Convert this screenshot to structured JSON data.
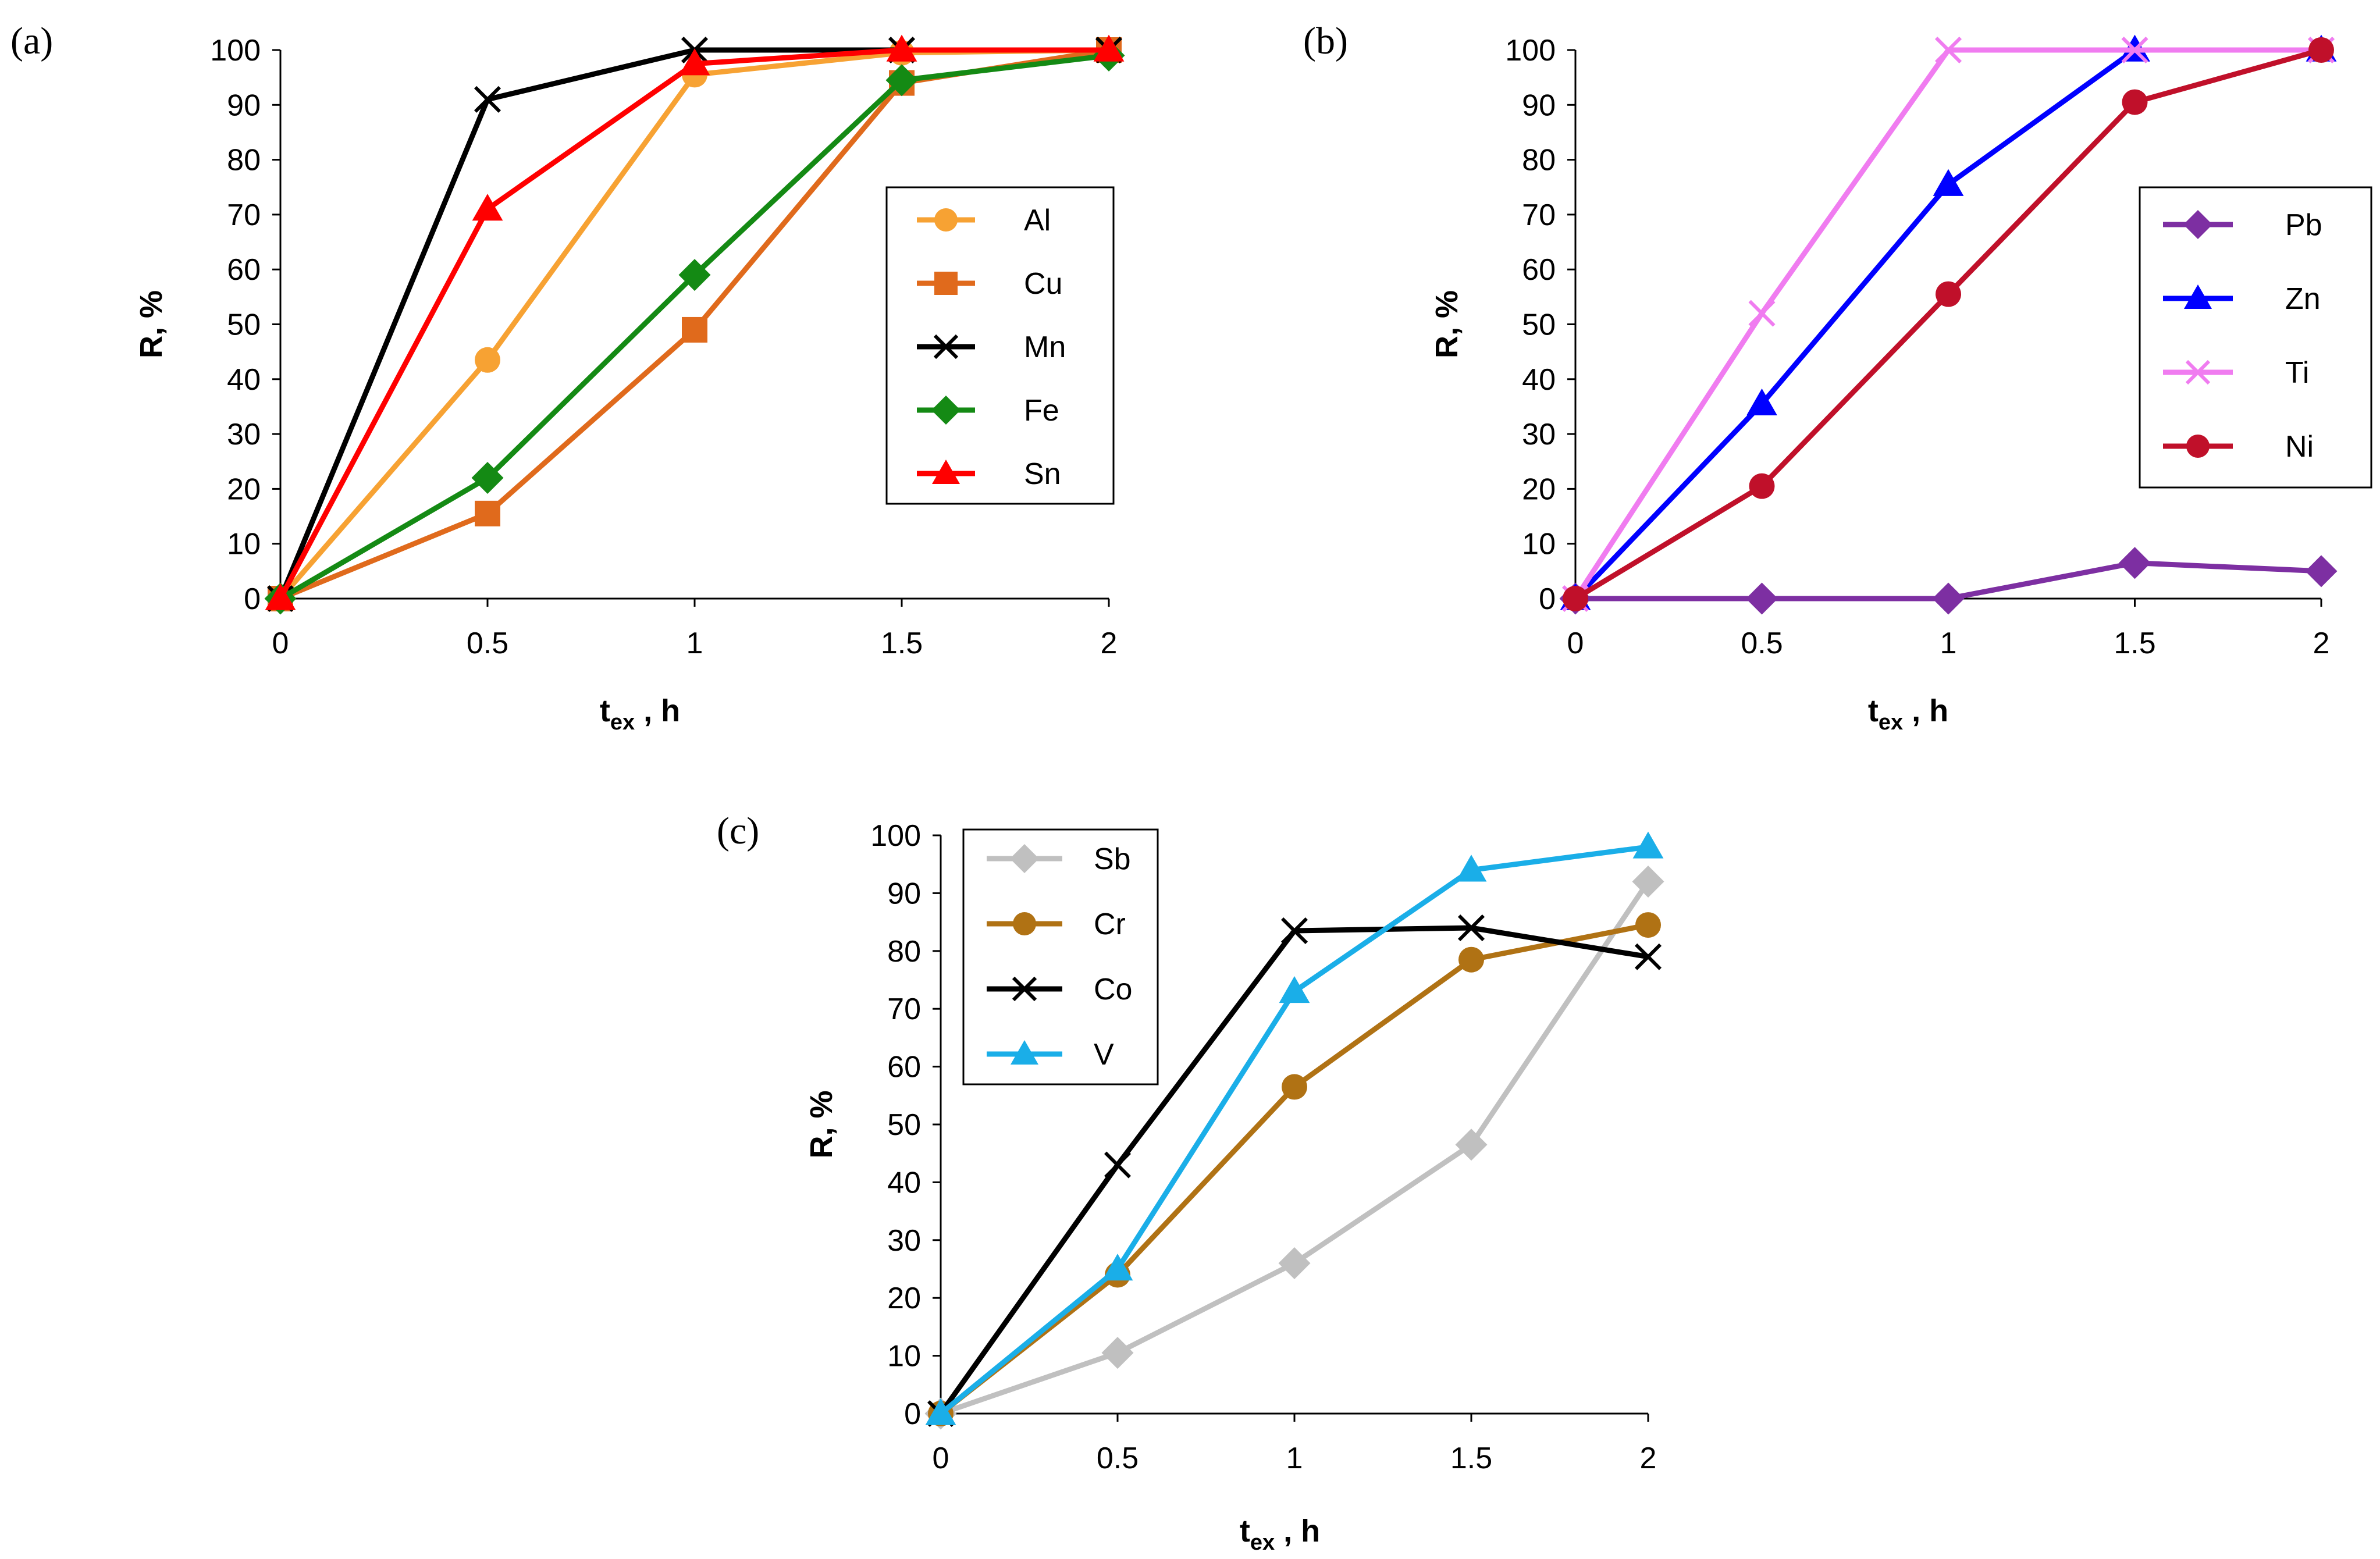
{
  "chart_data": [
    {
      "panel": "(a)",
      "type": "line",
      "x": [
        0,
        0.5,
        1,
        1.5,
        2
      ],
      "xticks": [
        "0",
        "0.5",
        "1",
        "1.5",
        "2"
      ],
      "yticks": [
        "0",
        "10",
        "20",
        "30",
        "40",
        "50",
        "60",
        "70",
        "80",
        "90",
        "100"
      ],
      "ylim": [
        0,
        100
      ],
      "xlabel_main": "t",
      "xlabel_sub": "ex",
      "xlabel_unit": " , h",
      "ylabel": "R, %",
      "legend_position": "right",
      "series": [
        {
          "name": "Al",
          "color": "#f7a233",
          "marker": "circle",
          "values": [
            0,
            43.5,
            95.5,
            99.5,
            100
          ]
        },
        {
          "name": "Cu",
          "color": "#e06a1c",
          "marker": "square",
          "values": [
            0,
            15.5,
            49,
            94,
            100
          ]
        },
        {
          "name": "Mn",
          "color": "#000000",
          "marker": "x",
          "values": [
            0,
            91,
            100,
            100,
            100
          ]
        },
        {
          "name": "Fe",
          "color": "#148a14",
          "marker": "diamond",
          "values": [
            0,
            22,
            59,
            94.5,
            99
          ]
        },
        {
          "name": "Sn",
          "color": "#ff0000",
          "marker": "triangle",
          "values": [
            0,
            71,
            97.5,
            100,
            100
          ]
        }
      ]
    },
    {
      "panel": "(b)",
      "type": "line",
      "x": [
        0,
        0.5,
        1,
        1.5,
        2
      ],
      "xticks": [
        "0",
        "0.5",
        "1",
        "1.5",
        "2"
      ],
      "yticks": [
        "0",
        "10",
        "20",
        "30",
        "40",
        "50",
        "60",
        "70",
        "80",
        "90",
        "100"
      ],
      "ylim": [
        0,
        100
      ],
      "xlabel_main": "t",
      "xlabel_sub": "ex",
      "xlabel_unit": " , h",
      "ylabel": "R, %",
      "legend_position": "right",
      "series": [
        {
          "name": "Pb",
          "color": "#7d2fa2",
          "marker": "diamond",
          "values": [
            0,
            0,
            0,
            6.5,
            5
          ]
        },
        {
          "name": "Zn",
          "color": "#0000ff",
          "marker": "triangle",
          "values": [
            0,
            35.5,
            75.5,
            100,
            100
          ]
        },
        {
          "name": "Ti",
          "color": "#f07cf0",
          "marker": "x",
          "values": [
            0,
            52,
            100,
            100,
            100
          ]
        },
        {
          "name": "Ni",
          "color": "#c0102a",
          "marker": "circle",
          "values": [
            0,
            20.5,
            55.5,
            90.5,
            100
          ]
        }
      ]
    },
    {
      "panel": "(c)",
      "type": "line",
      "x": [
        0,
        0.5,
        1,
        1.5,
        2
      ],
      "xticks": [
        "0",
        "0.5",
        "1",
        "1.5",
        "2"
      ],
      "yticks": [
        "0",
        "10",
        "20",
        "30",
        "40",
        "50",
        "60",
        "70",
        "80",
        "90",
        "100"
      ],
      "ylim": [
        0,
        100
      ],
      "xlabel_main": "t",
      "xlabel_sub": "ex",
      "xlabel_unit": " , h",
      "ylabel": "R, %",
      "legend_position": "top-left",
      "series": [
        {
          "name": "Sb",
          "color": "#c0c0c0",
          "marker": "diamond",
          "values": [
            0,
            10.5,
            26,
            46.5,
            92
          ]
        },
        {
          "name": "Cr",
          "color": "#b07214",
          "marker": "circle",
          "values": [
            0,
            24,
            56.5,
            78.5,
            84.5
          ]
        },
        {
          "name": "Co",
          "color": "#000000",
          "marker": "x",
          "values": [
            0,
            43,
            83.5,
            84,
            79
          ]
        },
        {
          "name": "V",
          "color": "#1aaee8",
          "marker": "triangle",
          "values": [
            0,
            25,
            73,
            94,
            98
          ]
        }
      ]
    }
  ]
}
